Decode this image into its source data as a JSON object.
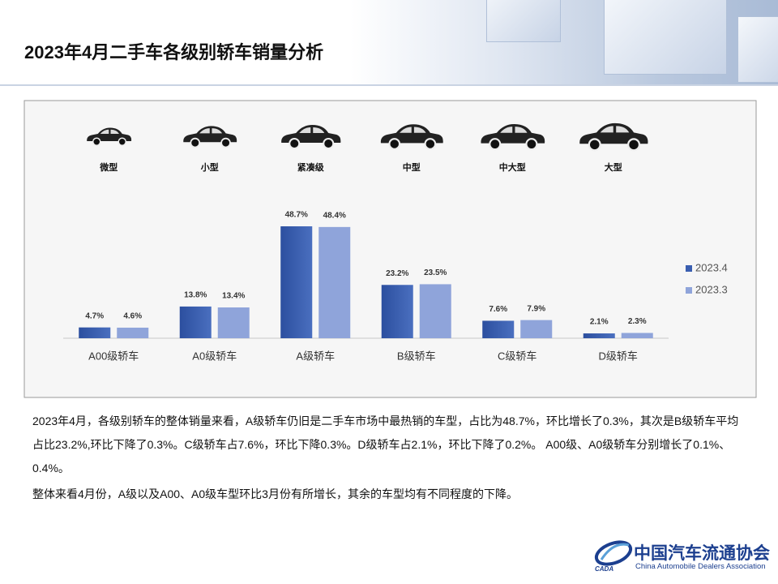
{
  "header": {
    "title": "2023年4月二手车各级别轿车销量分析"
  },
  "chart_data": {
    "type": "bar",
    "categories": [
      "A00级轿车",
      "A0级轿车",
      "A级轿车",
      "B级轿车",
      "C级轿车",
      "D级轿车"
    ],
    "segment_labels": [
      "微型",
      "小型",
      "紧凑级",
      "中型",
      "中大型",
      "大型"
    ],
    "series": [
      {
        "name": "2023.4",
        "color": "#3a5eb0",
        "values": [
          4.7,
          13.8,
          48.7,
          23.2,
          7.6,
          2.1
        ],
        "value_labels": [
          "4.7%",
          "13.8%",
          "48.7%",
          "23.2%",
          "7.6%",
          "2.1%"
        ]
      },
      {
        "name": "2023.3",
        "color": "#8fa4da",
        "values": [
          4.6,
          13.4,
          48.4,
          23.5,
          7.9,
          2.3
        ],
        "value_labels": [
          "4.6%",
          "13.4%",
          "48.4%",
          "23.5%",
          "7.9%",
          "2.3%"
        ]
      }
    ],
    "ylim": [
      0,
      60
    ],
    "legend": "right"
  },
  "text": {
    "paragraphs": [
      "2023年4月，各级别轿车的整体销量来看，A级轿车仍旧是二手车市场中最热销的车型，占比为48.7%，环比增长了0.3%，其次是B级轿车平均占比23.2%,环比下降了0.3%。C级轿车占7.6%，环比下降0.3%。D级轿车占2.1%，环比下降了0.2%。 A00级、A0级轿车分别增长了0.1%、0.4%。",
      "整体来看4月份，A级以及A00、A0级车型环比3月份有所增长，其余的车型均有不同程度的下降。"
    ]
  },
  "footer": {
    "name_cn": "中国汽车流通协会",
    "name_en": "China Automobile Dealers Association",
    "abbr": "CADA"
  }
}
